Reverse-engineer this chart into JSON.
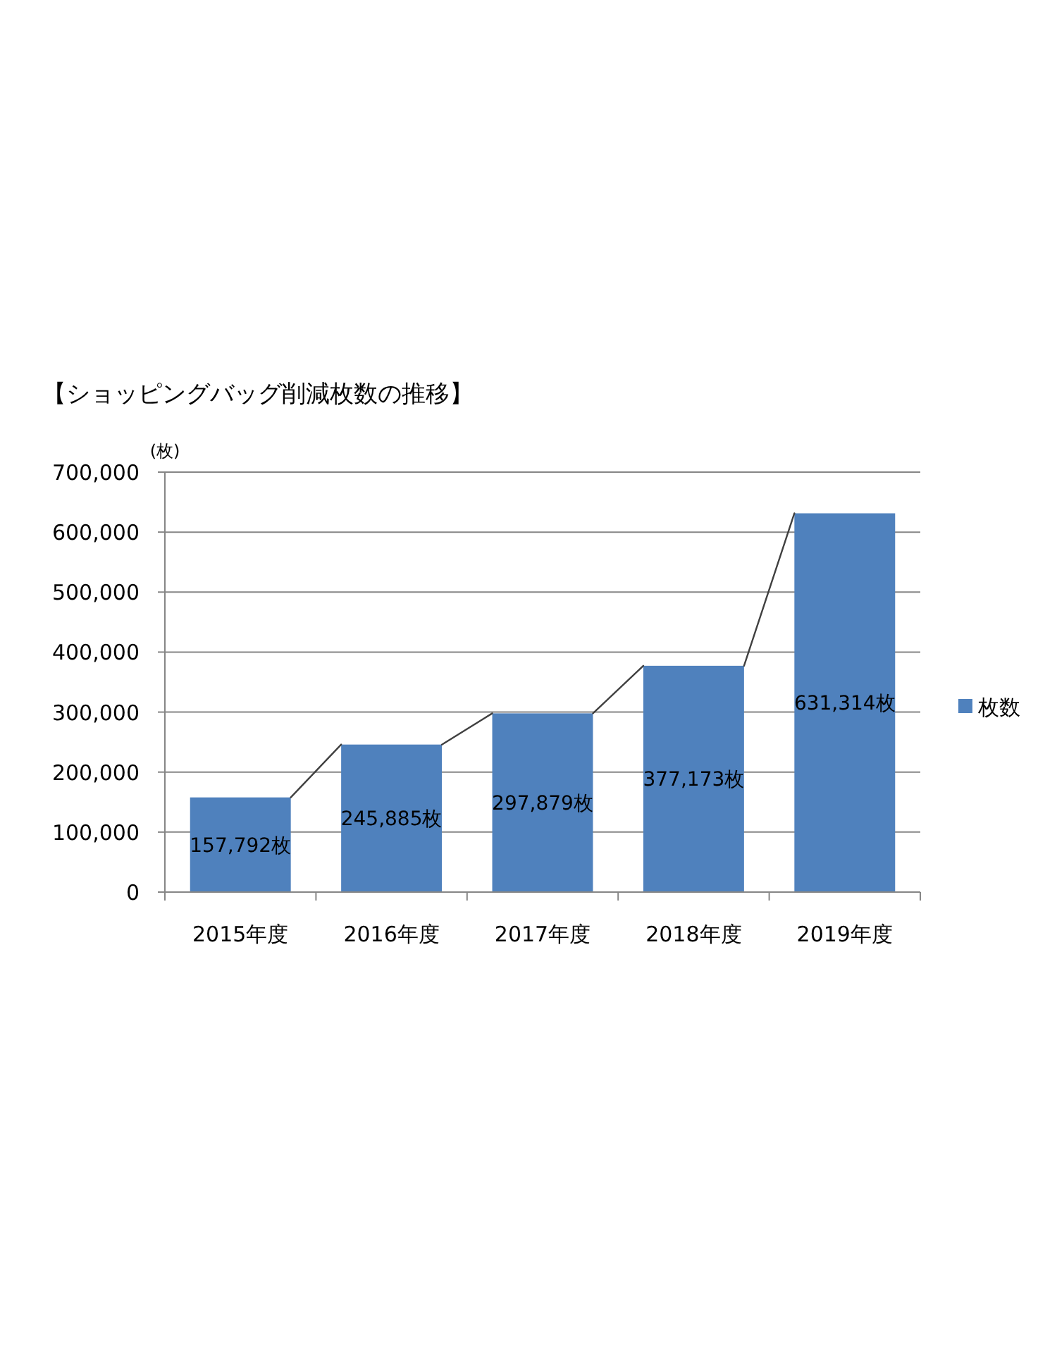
{
  "chart_data": {
    "type": "bar",
    "title": "【ショッピングバッグ削減枚数の推移】",
    "ylabel": "(枚)",
    "categories": [
      "2015年度",
      "2016年度",
      "2017年度",
      "2018年度",
      "2019年度"
    ],
    "series": [
      {
        "name": "枚数",
        "color": "#4f81bd",
        "values": [
          157792,
          245885,
          297879,
          377173,
          631314
        ],
        "value_labels": [
          "157,792枚",
          "245,885枚",
          "297,879枚",
          "377,173枚",
          "631,314枚"
        ]
      }
    ],
    "ylim": [
      0,
      700000
    ],
    "yticks": [
      0,
      {
        "value": 100000,
        "label": "100,000"
      },
      {
        "value": 200000,
        "label": "200,000"
      },
      {
        "value": 300000,
        "label": "300,000"
      },
      {
        "value": 400000,
        "label": "400,000"
      },
      {
        "value": 500000,
        "label": "500,000"
      },
      {
        "value": 600000,
        "label": "600,000"
      },
      {
        "value": 700000,
        "label": "700,000"
      }
    ],
    "grid": "y",
    "legend": "right"
  }
}
